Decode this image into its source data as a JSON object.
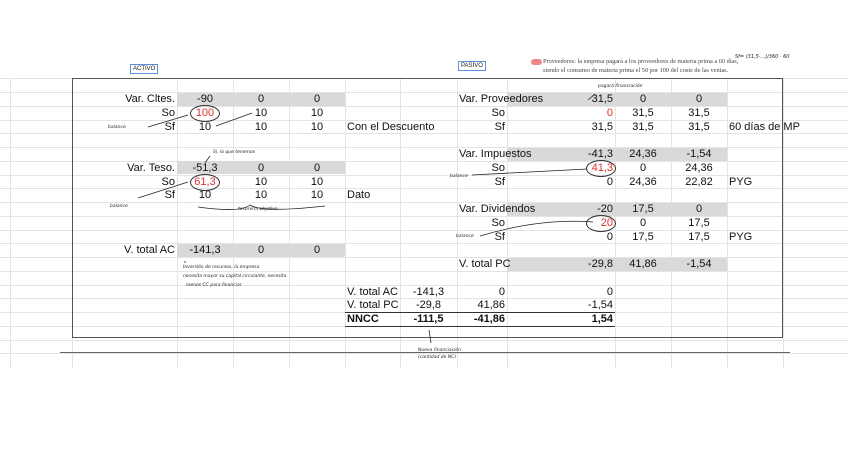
{
  "sheet_labels": {
    "activo": "ACTIVO",
    "pasivo": "PASIVO"
  },
  "problem_text": [
    "Proveedores: la empresa pagará a los proveedores de materia prima a 60 días,",
    "siendo el consumo de materia prima el 50 por 100 del coste de las ventas."
  ],
  "formula_note": "Sf= (31,5·...)/360 · 60",
  "rows": [
    {
      "r": 0,
      "cells": {
        "A": "Var. Cltes.",
        "B": "-90",
        "C": "0",
        "D": "0",
        "G": "Var. Proveedores",
        "H": "31,5",
        "I": "0",
        "J": "0"
      }
    },
    {
      "r": 1,
      "cells": {
        "A": "So",
        "B": "100",
        "C": "10",
        "D": "10",
        "G": "So",
        "H": "0",
        "I": "31,5",
        "J": "31,5"
      }
    },
    {
      "r": 2,
      "cells": {
        "A": "Sf",
        "B": "10",
        "C": "10",
        "D": "10",
        "E": "Con el Descuento",
        "G": "Sf",
        "H": "31,5",
        "I": "31,5",
        "J": "31,5",
        "K": "60 días de MP"
      }
    },
    {
      "r": 4,
      "cells": {
        "G": "Var. Impuestos",
        "H": "-41,3",
        "I": "24,36",
        "J": "-1,54"
      }
    },
    {
      "r": 5,
      "cells": {
        "A": "Var. Teso.",
        "B": "-51,3",
        "C": "0",
        "D": "0",
        "G": "So",
        "H": "41,3",
        "I": "0",
        "J": "24,36"
      }
    },
    {
      "r": 6,
      "cells": {
        "A": "So",
        "B": "61,3",
        "C": "10",
        "D": "10",
        "G": "Sf",
        "H": "0",
        "I": "24,36",
        "J": "22,82",
        "K": "PYG"
      }
    },
    {
      "r": 7,
      "cells": {
        "A": "Sf",
        "B": "10",
        "C": "10",
        "D": "10",
        "E": "Dato"
      }
    },
    {
      "r": 8,
      "cells": {
        "G": "Var. Dividendos",
        "H": "-20",
        "I": "17,5",
        "J": "0"
      }
    },
    {
      "r": 9,
      "cells": {
        "G": "So",
        "H": "20",
        "I": "0",
        "J": "17,5"
      }
    },
    {
      "r": 10,
      "cells": {
        "G": "Sf",
        "H": "0",
        "I": "17,5",
        "J": "17,5",
        "K": "PYG"
      }
    },
    {
      "r": 11,
      "cells": {
        "A": "V. total AC",
        "B": "-141,3",
        "C": "0",
        "D": "0"
      }
    },
    {
      "r": 12,
      "cells": {
        "G": "V. total PC",
        "H": "-29,8",
        "I": "41,86",
        "J": "-1,54"
      }
    },
    {
      "r": 14,
      "cells": {
        "E": "V. total AC",
        "F": "-141,3",
        "G": "0",
        "H": "0"
      }
    },
    {
      "r": 15,
      "cells": {
        "E": "V. total PC",
        "F": "-29,8",
        "G": "41,86",
        "H": "-1,54"
      }
    },
    {
      "r": 16,
      "cells": {
        "E": "NNCC",
        "F": "-111,5",
        "G": "-41,86",
        "H": "1,54"
      }
    }
  ],
  "notes": {
    "n1": "balance",
    "n2": "balance",
    "n3": "balance",
    "n4": "balance",
    "n5": "Si, lo que tenemos",
    "n6": "tesorería objetivo",
    "n7": "pagará financiación",
    "n8a": "Inversión de recursos, la empresa",
    "n8b": "necesita mayor su capital circulante, necesita",
    "n8c": "menos CC para financiar",
    "n9a": "Nueva financiación",
    "n9b": "(cantidad de NC)"
  }
}
